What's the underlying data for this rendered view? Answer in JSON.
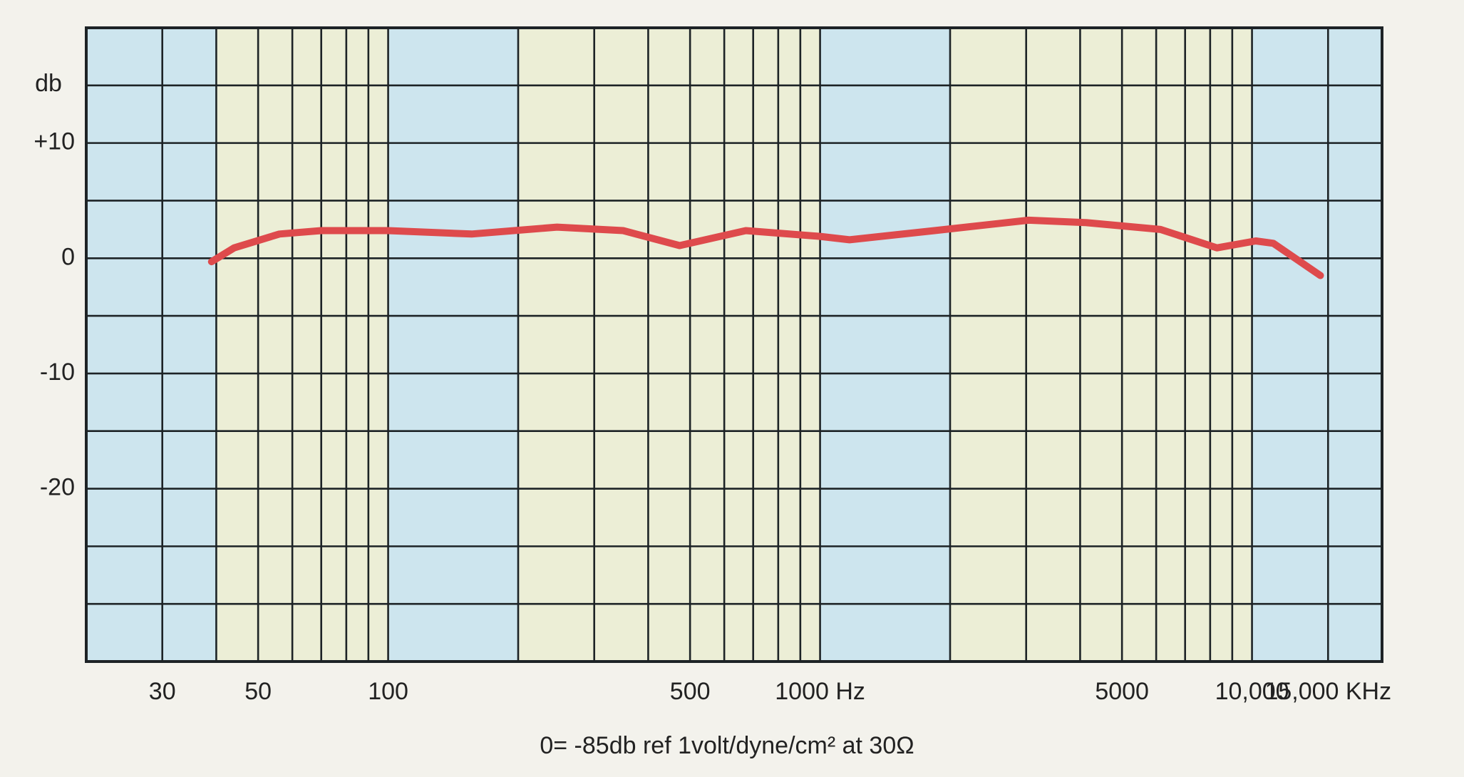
{
  "chart_data": {
    "type": "line",
    "y_label": "db",
    "note": "0= -85db ref 1volt/dyne/cm² at 30Ω",
    "x": [
      39,
      44,
      56,
      70,
      100,
      156,
      246,
      350,
      473,
      673,
      1000,
      1170,
      1840,
      3040,
      4110,
      6140,
      8300,
      10200,
      11200,
      14400
    ],
    "series": [
      {
        "color": "#de4a4c",
        "values": [
          -0.3,
          0.9,
          2.1,
          2.4,
          2.4,
          2.1,
          2.7,
          2.4,
          1.1,
          2.4,
          1.9,
          1.6,
          2.4,
          3.3,
          3.1,
          2.5,
          0.9,
          1.5,
          1.3,
          -1.5
        ]
      }
    ],
    "xlim": [
      20,
      20000
    ],
    "xlog": true,
    "xticks": [
      30,
      50,
      100,
      500,
      {
        "value": 1000,
        "label": "1000 Hz"
      },
      5000,
      {
        "value": 10000,
        "label": "10,000"
      },
      {
        "value": 15000,
        "label": "15,000 KHz"
      }
    ],
    "xminor": [
      40,
      60,
      70,
      80,
      90,
      200,
      300,
      400,
      600,
      700,
      800,
      900,
      2000,
      3000,
      4000,
      6000,
      7000,
      8000,
      9000
    ],
    "ylim": [
      -35,
      20
    ],
    "yticks": [
      {
        "value": 10,
        "label": "+10"
      },
      0,
      -10,
      -20
    ],
    "yminor": [
      15,
      5,
      -5,
      -15,
      -25,
      -30
    ],
    "shaded_bands": [
      [
        40,
        100
      ],
      [
        200,
        1000
      ],
      [
        2000,
        10000
      ]
    ],
    "band_colors": [
      "#cde5ee",
      "#eceed6"
    ],
    "grid": true
  }
}
